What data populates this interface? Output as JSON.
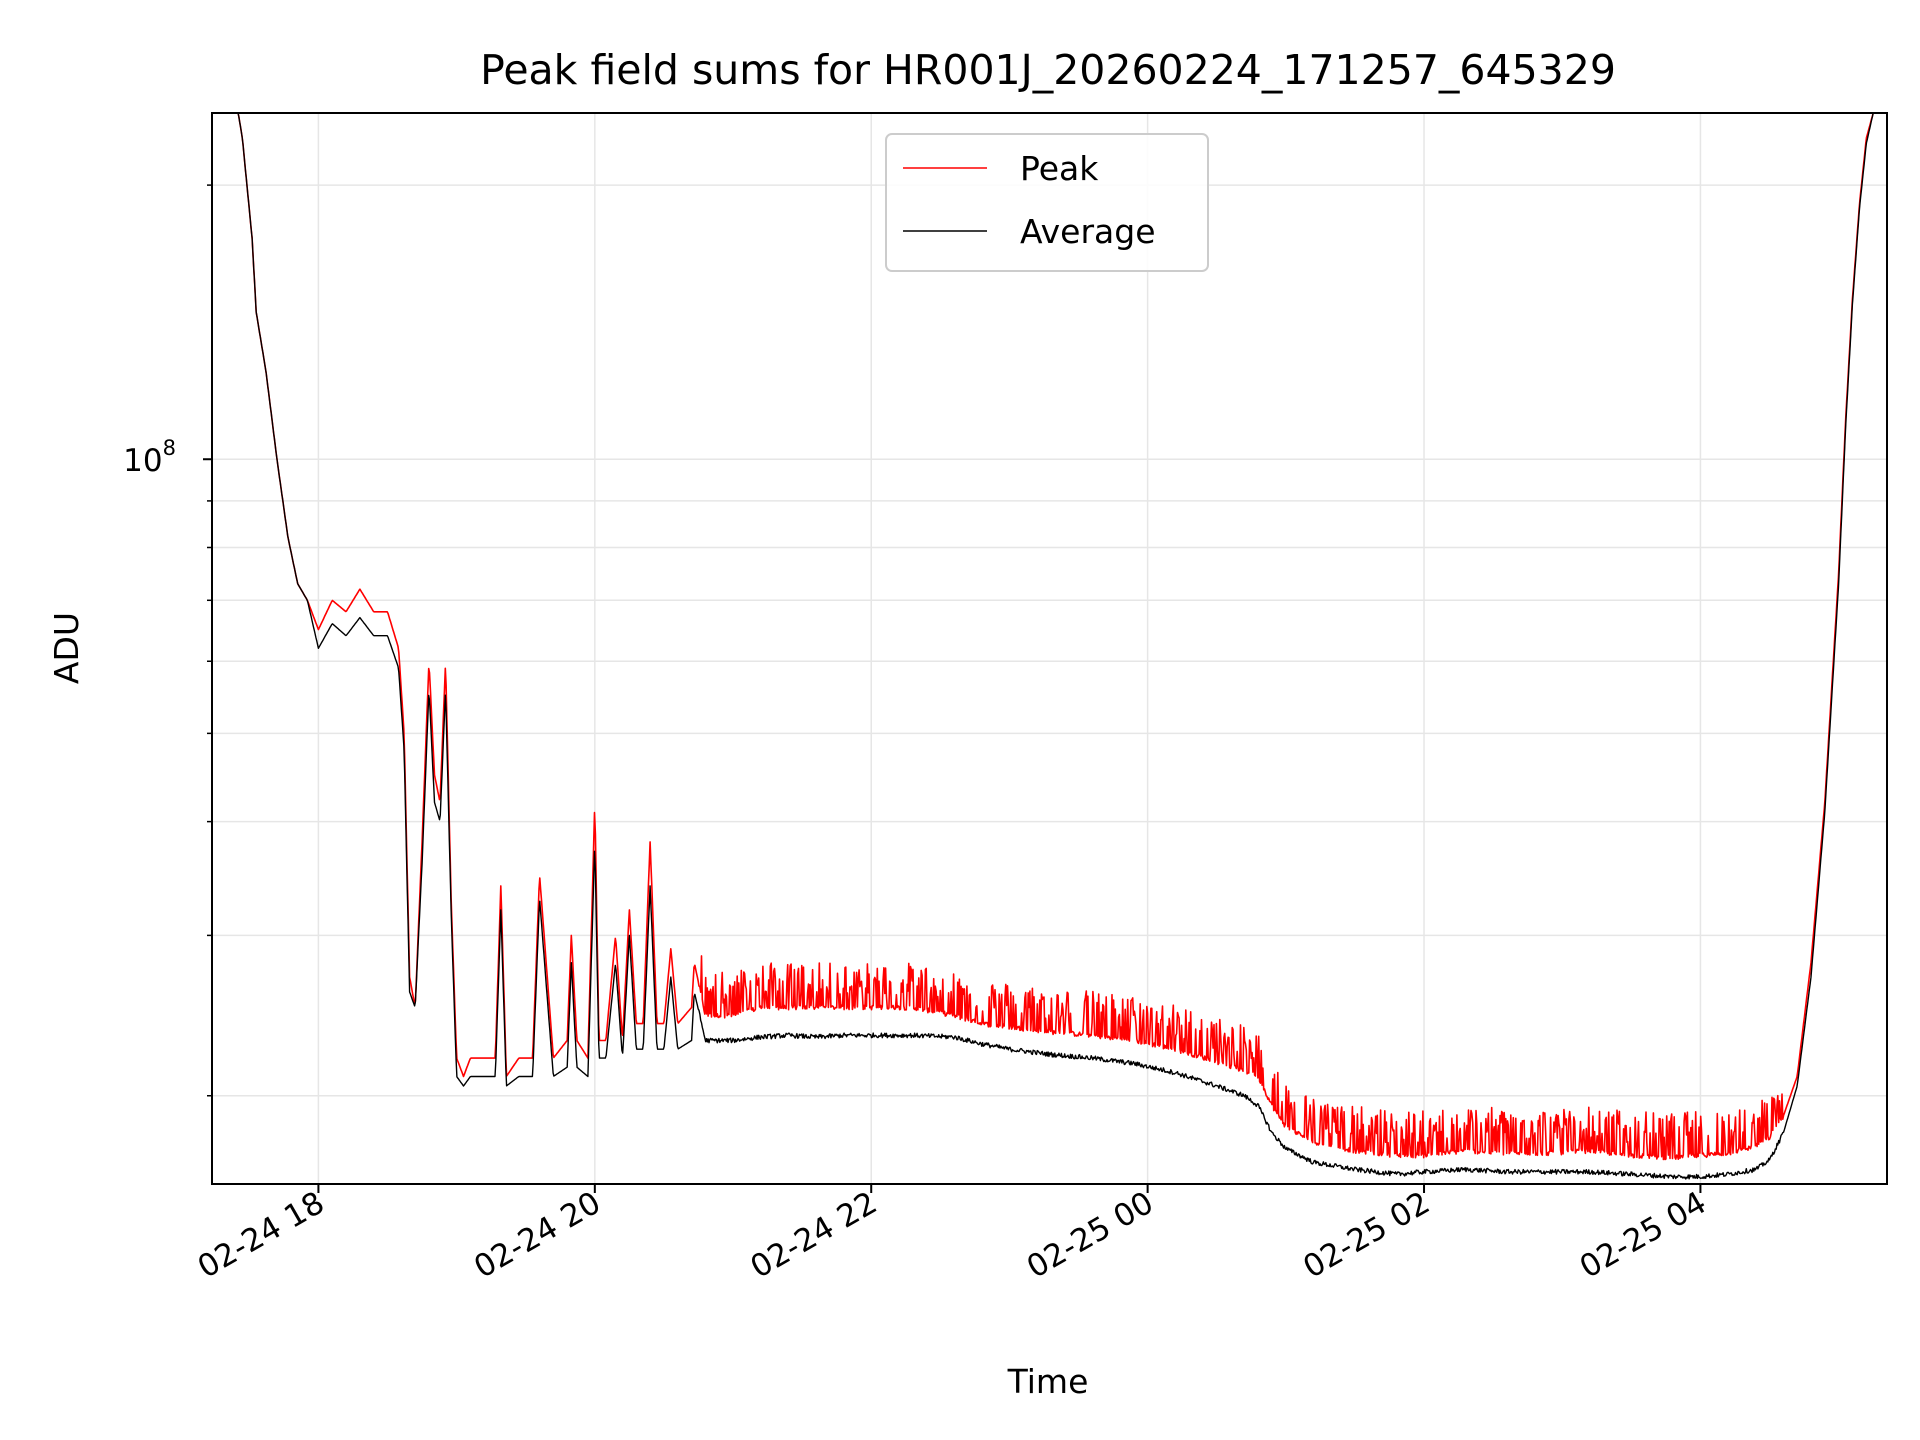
{
  "chart_data": {
    "type": "line",
    "title": "Peak field sums for HR001J_20260224_171257_645329",
    "xlabel": "Time",
    "ylabel": "ADU",
    "x_unit": "hours since 2026-02-24 00:00",
    "xlim": [
      17.23,
      29.35
    ],
    "ylim": [
      16000000,
      240000000
    ],
    "y_scale": "log",
    "grid": true,
    "legend_placement": "upper center",
    "x_ticks": [
      {
        "value": 18,
        "label": "02-24 18"
      },
      {
        "value": 20,
        "label": "02-24 20"
      },
      {
        "value": 22,
        "label": "02-24 22"
      },
      {
        "value": 24,
        "label": "02-25 00"
      },
      {
        "value": 26,
        "label": "02-25 02"
      },
      {
        "value": 28,
        "label": "02-25 04"
      }
    ],
    "y_major_ticks": [
      {
        "value": 100000000,
        "base": "10",
        "exponent": "8"
      }
    ],
    "y_minor_ticks": [
      20000000,
      30000000,
      40000000,
      50000000,
      60000000,
      70000000,
      80000000,
      90000000,
      200000000
    ],
    "series": [
      {
        "name": "Peak",
        "color": "#ff0000",
        "x": [
          17.25,
          17.42,
          17.45,
          17.52,
          17.55,
          17.62,
          17.7,
          17.78,
          17.85,
          17.92,
          18.0,
          18.1,
          18.2,
          18.3,
          18.4,
          18.5,
          18.58,
          18.62,
          18.66,
          18.7,
          18.75,
          18.8,
          18.84,
          18.88,
          18.92,
          18.96,
          19.0,
          19.05,
          19.1,
          19.2,
          19.28,
          19.32,
          19.36,
          19.45,
          19.55,
          19.6,
          19.7,
          19.8,
          19.83,
          19.87,
          19.95,
          20.0,
          20.03,
          20.08,
          20.15,
          20.2,
          20.25,
          20.3,
          20.35,
          20.4,
          20.45,
          20.5,
          20.55,
          20.6,
          20.7,
          20.72,
          20.8,
          21.0,
          21.2,
          21.4,
          21.6,
          21.8,
          22.0,
          22.3,
          22.6,
          22.8,
          23.0,
          23.3,
          23.6,
          23.9,
          24.2,
          24.5,
          24.7,
          24.8,
          24.9,
          25.0,
          25.2,
          25.5,
          25.8,
          26.0,
          26.3,
          26.6,
          26.9,
          27.2,
          27.5,
          27.8,
          28.0,
          28.2,
          28.4,
          28.5,
          28.6,
          28.7,
          28.8,
          28.9,
          29.0,
          29.05,
          29.1,
          29.15,
          29.2,
          29.25,
          29.35
        ],
        "y": [
          240000000,
          240000000,
          225000000,
          175000000,
          145000000,
          125000000,
          100000000,
          82000000,
          73000000,
          70000000,
          65000000,
          70000000,
          68000000,
          72000000,
          68000000,
          68000000,
          62000000,
          50000000,
          27000000,
          25000000,
          38000000,
          60000000,
          45000000,
          42000000,
          60000000,
          33000000,
          22000000,
          21000000,
          22000000,
          22000000,
          22000000,
          34000000,
          21000000,
          22000000,
          22000000,
          35000000,
          22000000,
          23000000,
          30000000,
          23000000,
          22000000,
          42000000,
          23000000,
          23000000,
          30000000,
          23000000,
          32000000,
          24000000,
          24000000,
          38000000,
          24000000,
          24000000,
          29000000,
          24000000,
          25000000,
          28000000,
          24500000,
          24500000,
          25000000,
          25000000,
          25000000,
          25000000,
          25000000,
          25000000,
          24500000,
          24000000,
          23800000,
          23500000,
          23300000,
          23000000,
          22500000,
          21800000,
          21300000,
          21000000,
          19500000,
          18500000,
          17800000,
          17400000,
          17200000,
          17200000,
          17400000,
          17300000,
          17300000,
          17400000,
          17200000,
          17100000,
          17200000,
          17300000,
          17600000,
          18000000,
          19000000,
          21000000,
          28000000,
          42000000,
          75000000,
          110000000,
          150000000,
          190000000,
          225000000,
          240000000,
          240000000
        ]
      },
      {
        "name": "Average",
        "color": "#000000",
        "x": [
          17.25,
          17.42,
          17.45,
          17.52,
          17.55,
          17.62,
          17.7,
          17.78,
          17.85,
          17.92,
          18.0,
          18.1,
          18.2,
          18.3,
          18.4,
          18.5,
          18.58,
          18.62,
          18.66,
          18.7,
          18.75,
          18.8,
          18.84,
          18.88,
          18.92,
          18.96,
          19.0,
          19.05,
          19.1,
          19.2,
          19.28,
          19.32,
          19.36,
          19.45,
          19.55,
          19.6,
          19.7,
          19.8,
          19.83,
          19.87,
          19.95,
          20.0,
          20.03,
          20.08,
          20.15,
          20.2,
          20.25,
          20.3,
          20.35,
          20.4,
          20.45,
          20.5,
          20.55,
          20.6,
          20.7,
          20.72,
          20.8,
          21.0,
          21.2,
          21.4,
          21.6,
          21.8,
          22.0,
          22.3,
          22.6,
          22.8,
          23.0,
          23.3,
          23.6,
          23.9,
          24.2,
          24.5,
          24.7,
          24.8,
          24.9,
          25.0,
          25.2,
          25.5,
          25.8,
          26.0,
          26.3,
          26.6,
          26.9,
          27.2,
          27.5,
          27.8,
          28.0,
          28.2,
          28.4,
          28.5,
          28.6,
          28.7,
          28.8,
          28.9,
          29.0,
          29.05,
          29.1,
          29.15,
          29.2,
          29.25,
          29.35
        ],
        "y": [
          240000000,
          240000000,
          225000000,
          175000000,
          145000000,
          125000000,
          100000000,
          82000000,
          73000000,
          70000000,
          62000000,
          66000000,
          64000000,
          67000000,
          64000000,
          64000000,
          59000000,
          48000000,
          26000000,
          25000000,
          36000000,
          56000000,
          42000000,
          40000000,
          56000000,
          32000000,
          21000000,
          20500000,
          21000000,
          21000000,
          21000000,
          32000000,
          20500000,
          21000000,
          21000000,
          33000000,
          21000000,
          21500000,
          28000000,
          21500000,
          21000000,
          38000000,
          22000000,
          22000000,
          28000000,
          22000000,
          30000000,
          22500000,
          22500000,
          34000000,
          22500000,
          22500000,
          27000000,
          22500000,
          23000000,
          26000000,
          23000000,
          23000000,
          23200000,
          23300000,
          23200000,
          23300000,
          23300000,
          23300000,
          23200000,
          22800000,
          22500000,
          22200000,
          22000000,
          21700000,
          21200000,
          20500000,
          20000000,
          19500000,
          18200000,
          17500000,
          16900000,
          16600000,
          16400000,
          16500000,
          16600000,
          16500000,
          16500000,
          16500000,
          16400000,
          16300000,
          16300000,
          16400000,
          16600000,
          17000000,
          18200000,
          20500000,
          27000000,
          41000000,
          73000000,
          108000000,
          148000000,
          188000000,
          222000000,
          240000000,
          240000000
        ]
      }
    ]
  }
}
